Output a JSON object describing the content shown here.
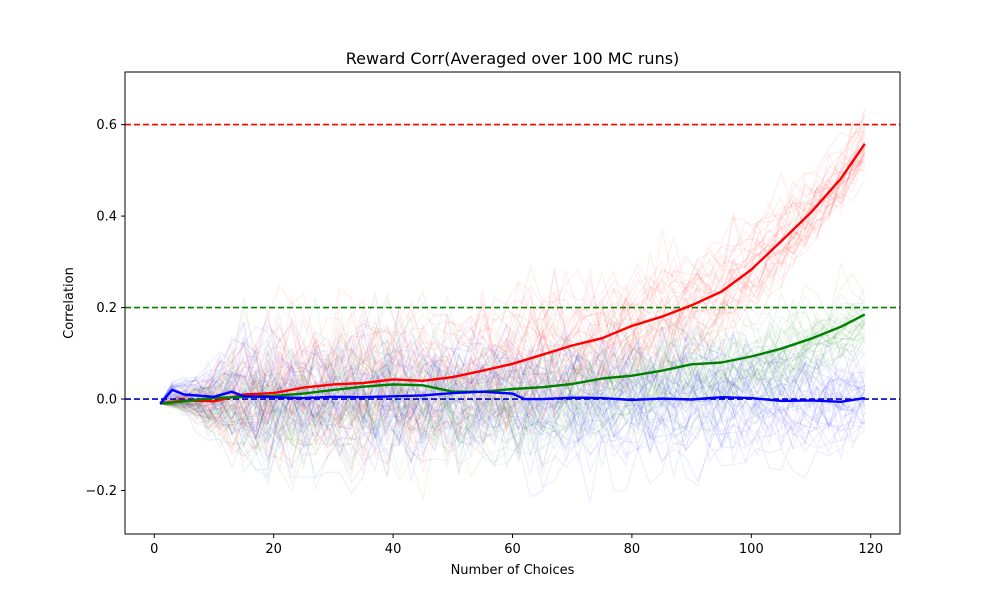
{
  "chart_data": {
    "type": "line",
    "title": "Reward Corr(Averaged over 100 MC runs)",
    "xlabel": "Number of Choices",
    "ylabel": "Correlation",
    "xlim": [
      -4.9,
      124.9
    ],
    "ylim": [
      -0.295,
      0.715
    ],
    "xticks": [
      0,
      20,
      40,
      60,
      80,
      100,
      120
    ],
    "yticks": [
      -0.2,
      0.0,
      0.2,
      0.4,
      0.6
    ],
    "xtick_labels": [
      "0",
      "20",
      "40",
      "60",
      "80",
      "100",
      "120"
    ],
    "ytick_labels": [
      "−0.2",
      "0.0",
      "0.2",
      "0.4",
      "0.6"
    ],
    "grid": false,
    "legend": "none",
    "reference_lines": [
      {
        "y": 0.6,
        "color": "#ff0000",
        "style": "dashed"
      },
      {
        "y": 0.2,
        "color": "#008000",
        "style": "dashed"
      },
      {
        "y": 0.0,
        "color": "#0000bf",
        "style": "dashed"
      }
    ],
    "mc_runs_per_series": 100,
    "series": [
      {
        "color": "#ff0000",
        "x": [
          1,
          5,
          10,
          15,
          20,
          25,
          30,
          35,
          40,
          45,
          50,
          55,
          60,
          65,
          70,
          75,
          80,
          85,
          90,
          95,
          100,
          105,
          110,
          115,
          119
        ],
        "y": [
          -0.01,
          -0.003,
          -0.005,
          0.01,
          0.013,
          0.025,
          0.032,
          0.035,
          0.043,
          0.04,
          0.048,
          0.062,
          0.077,
          0.097,
          0.117,
          0.133,
          0.16,
          0.18,
          0.205,
          0.235,
          0.283,
          0.345,
          0.408,
          0.482,
          0.558
        ],
        "spread": [
          0.03,
          0.06,
          0.09,
          0.1,
          0.11,
          0.11,
          0.11,
          0.11,
          0.11,
          0.11,
          0.11,
          0.11,
          0.11,
          0.11,
          0.1,
          0.1,
          0.09,
          0.09,
          0.08,
          0.08,
          0.07,
          0.07,
          0.06,
          0.05,
          0.05
        ]
      },
      {
        "color": "#008000",
        "x": [
          1,
          5,
          10,
          15,
          20,
          25,
          30,
          35,
          40,
          45,
          50,
          55,
          60,
          65,
          70,
          75,
          80,
          85,
          90,
          95,
          100,
          105,
          110,
          115,
          119
        ],
        "y": [
          -0.01,
          -0.005,
          0.002,
          0.005,
          0.007,
          0.012,
          0.02,
          0.027,
          0.032,
          0.03,
          0.016,
          0.016,
          0.022,
          0.026,
          0.033,
          0.045,
          0.051,
          0.062,
          0.076,
          0.08,
          0.093,
          0.11,
          0.132,
          0.158,
          0.185
        ],
        "spread": [
          0.03,
          0.06,
          0.08,
          0.09,
          0.1,
          0.1,
          0.1,
          0.1,
          0.1,
          0.1,
          0.1,
          0.1,
          0.1,
          0.1,
          0.1,
          0.09,
          0.09,
          0.09,
          0.09,
          0.08,
          0.08,
          0.07,
          0.07,
          0.06,
          0.05
        ]
      },
      {
        "color": "#0000ff",
        "x": [
          1,
          3,
          5,
          10,
          13,
          15,
          20,
          25,
          30,
          35,
          40,
          45,
          50,
          55,
          60,
          62,
          65,
          70,
          75,
          80,
          85,
          90,
          95,
          100,
          105,
          110,
          115,
          119
        ],
        "y": [
          -0.01,
          0.02,
          0.01,
          0.005,
          0.016,
          0.006,
          0.004,
          0.002,
          0.005,
          0.004,
          0.006,
          0.008,
          0.013,
          0.016,
          0.012,
          0.0,
          0.0,
          0.003,
          0.002,
          -0.002,
          0.001,
          -0.001,
          0.004,
          0.002,
          -0.004,
          -0.003,
          -0.006,
          0.002
        ],
        "spread": [
          0.03,
          0.1,
          0.09,
          0.1,
          0.1,
          0.1,
          0.1,
          0.1,
          0.1,
          0.1,
          0.1,
          0.1,
          0.1,
          0.1,
          0.1,
          0.1,
          0.1,
          0.1,
          0.1,
          0.1,
          0.1,
          0.1,
          0.1,
          0.1,
          0.09,
          0.09,
          0.08,
          0.07
        ]
      }
    ]
  }
}
